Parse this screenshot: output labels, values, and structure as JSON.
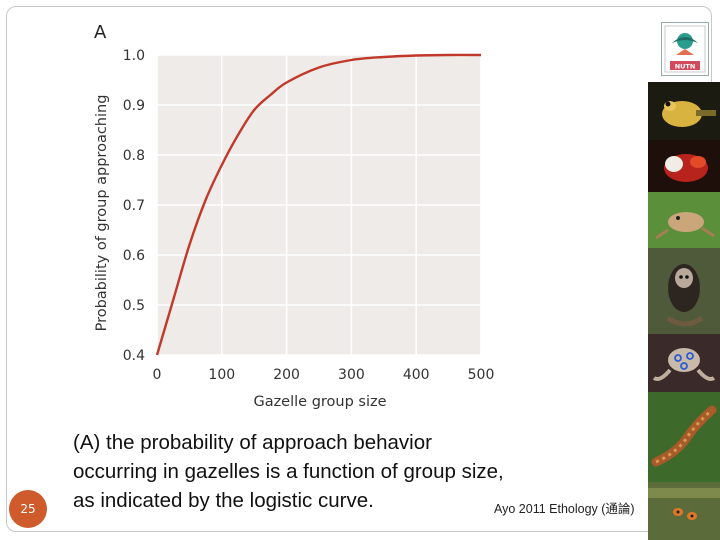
{
  "slide": {
    "panel_label": "A",
    "page_number": "25",
    "caption": "(A) the probability of approach behavior occurring in gazelles is a function of group size, as indicated by the logistic curve.",
    "credit": "Ayo 2011 Ethology (通論)",
    "logo_text": "NUTN"
  },
  "colors": {
    "plot_background": "#eeebe8",
    "grid": "#ffffff",
    "curve": "#c0392b",
    "page_badge": "#cf5a2c"
  },
  "photos": [
    {
      "name": "frog-photo-1",
      "icon": "yellow-frog"
    },
    {
      "name": "frog-photo-2",
      "icon": "red-white-frog"
    },
    {
      "name": "frog-photo-3",
      "icon": "tan-frog"
    },
    {
      "name": "marmoset-photo",
      "icon": "marmoset"
    },
    {
      "name": "octopus-photo",
      "icon": "blue-ringed-octopus"
    },
    {
      "name": "salamander-photo",
      "icon": "salamander"
    },
    {
      "name": "insect-photo",
      "icon": "orange-insects"
    }
  ],
  "chart_data": {
    "type": "line",
    "xlabel": "Gazelle group size",
    "ylabel": "Probability of group approaching",
    "xlim": [
      0,
      500
    ],
    "ylim": [
      0.4,
      1.0
    ],
    "xticks": [
      0,
      100,
      200,
      300,
      400,
      500
    ],
    "yticks": [
      0.4,
      0.5,
      0.6,
      0.7,
      0.8,
      0.9,
      1.0
    ],
    "grid": true,
    "series": [
      {
        "x": [
          0,
          25,
          50,
          75,
          100,
          125,
          150,
          175,
          200,
          250,
          300,
          350,
          400,
          450,
          500
        ],
        "y": [
          0.4,
          0.51,
          0.62,
          0.71,
          0.78,
          0.84,
          0.89,
          0.92,
          0.945,
          0.975,
          0.99,
          0.996,
          0.999,
          1.0,
          1.0
        ]
      }
    ]
  }
}
